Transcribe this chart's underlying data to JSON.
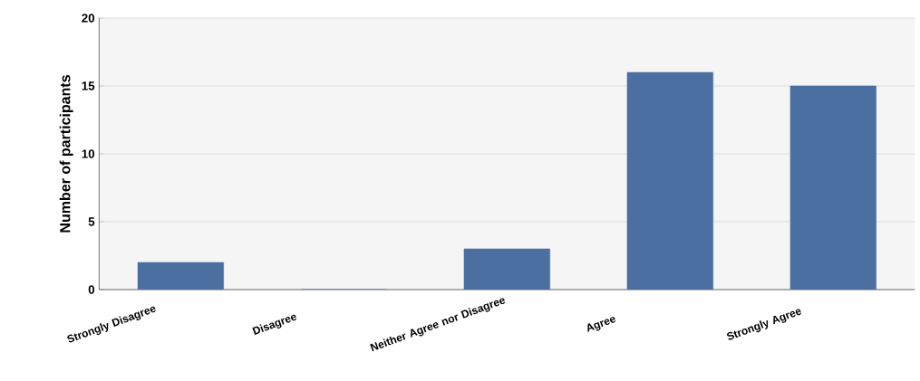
{
  "chart_data": {
    "type": "bar",
    "ylabel": "Number of participants",
    "categories": [
      "Strongly Disagree",
      "Disagree",
      "Neither Agree nor Disagree",
      "Agree",
      "Strongly Agree"
    ],
    "values": [
      2,
      0,
      3,
      16,
      15
    ],
    "color": "#4a6fa0",
    "ylim": [
      0,
      20
    ],
    "yticks": [
      0,
      5,
      10,
      15,
      20
    ],
    "grid": "y"
  }
}
